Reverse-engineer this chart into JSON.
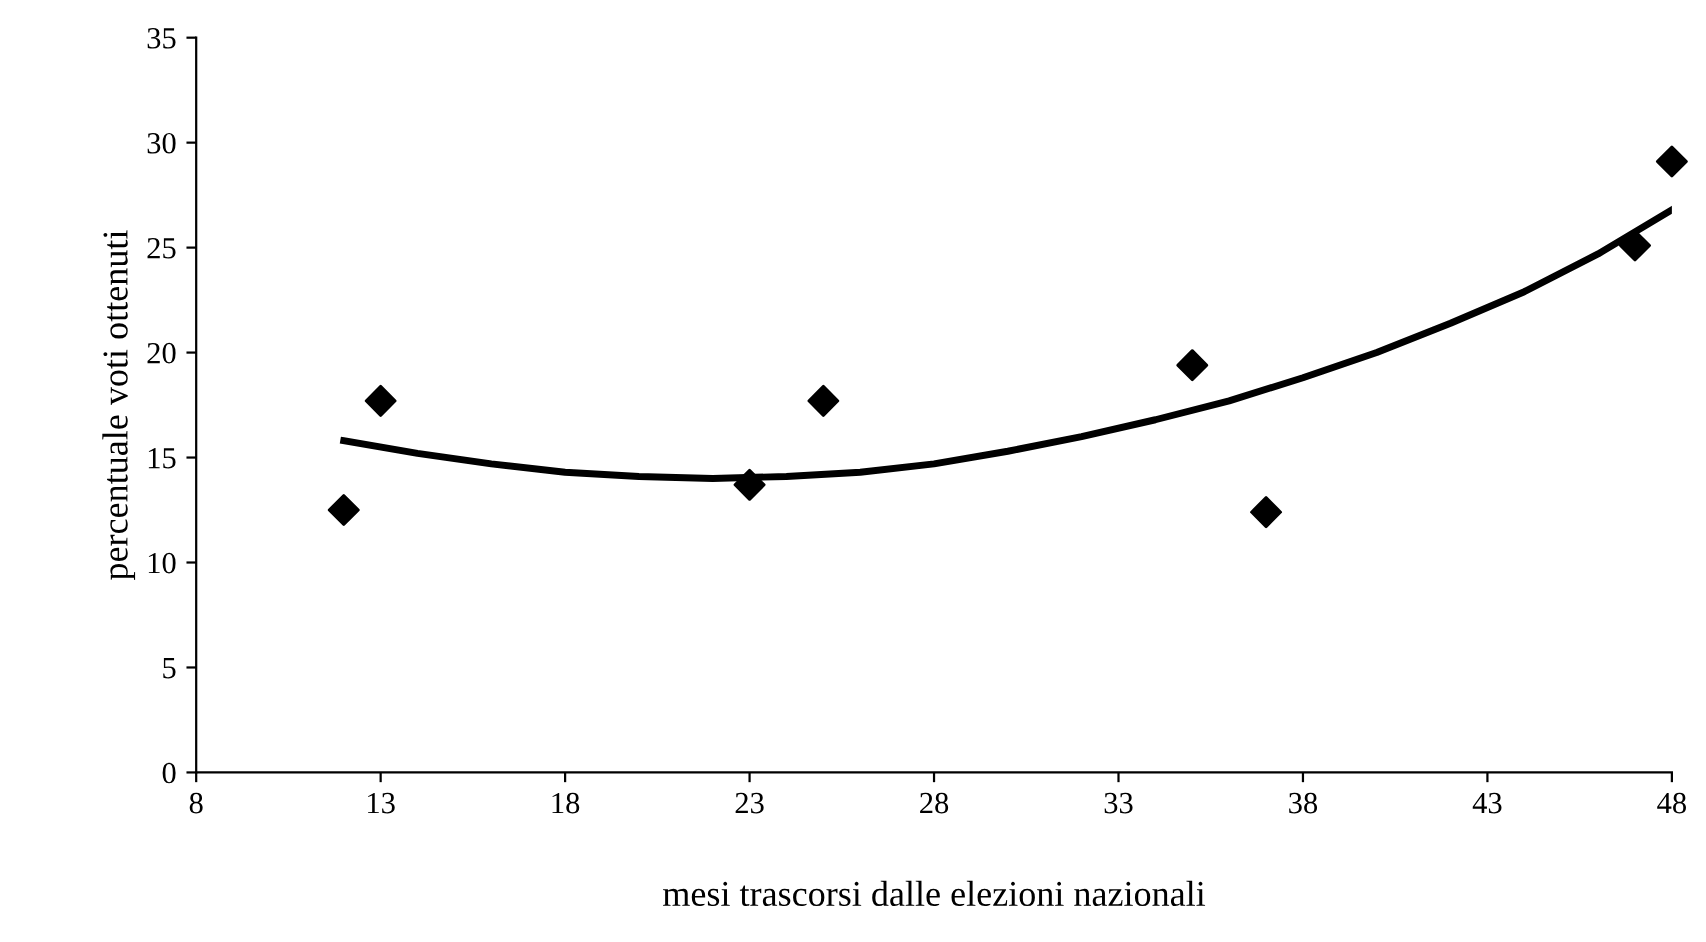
{
  "chart_data": {
    "type": "scatter",
    "xlabel": "mesi trascorsi dalle elezioni nazionali",
    "ylabel": "percentuale voti ottenuti",
    "xlim": [
      8,
      48
    ],
    "xticks": [
      8,
      13,
      18,
      23,
      28,
      33,
      38,
      43,
      48
    ],
    "ylim": [
      0,
      35
    ],
    "yticks": [
      0,
      5,
      10,
      15,
      20,
      25,
      30,
      35
    ],
    "grid": false,
    "series": [
      {
        "marker": "diamond",
        "color": "#000000",
        "x": [
          12,
          13,
          23,
          25,
          35,
          37,
          47,
          48
        ],
        "values": [
          12.5,
          17.7,
          13.7,
          17.7,
          19.4,
          12.4,
          25.1,
          29.1
        ]
      },
      {
        "type": "line",
        "marker": "none",
        "line_style": "solid",
        "color": "#000000",
        "x": [
          12,
          14,
          16,
          18,
          20,
          22,
          24,
          26,
          28,
          30,
          32,
          34,
          36,
          38,
          40,
          42,
          44,
          46,
          48
        ],
        "values": [
          15.8,
          15.2,
          14.7,
          14.3,
          14.1,
          14.0,
          14.1,
          14.3,
          14.7,
          15.3,
          16.0,
          16.8,
          17.7,
          18.8,
          20.0,
          21.4,
          22.9,
          24.7,
          26.8
        ]
      }
    ]
  }
}
